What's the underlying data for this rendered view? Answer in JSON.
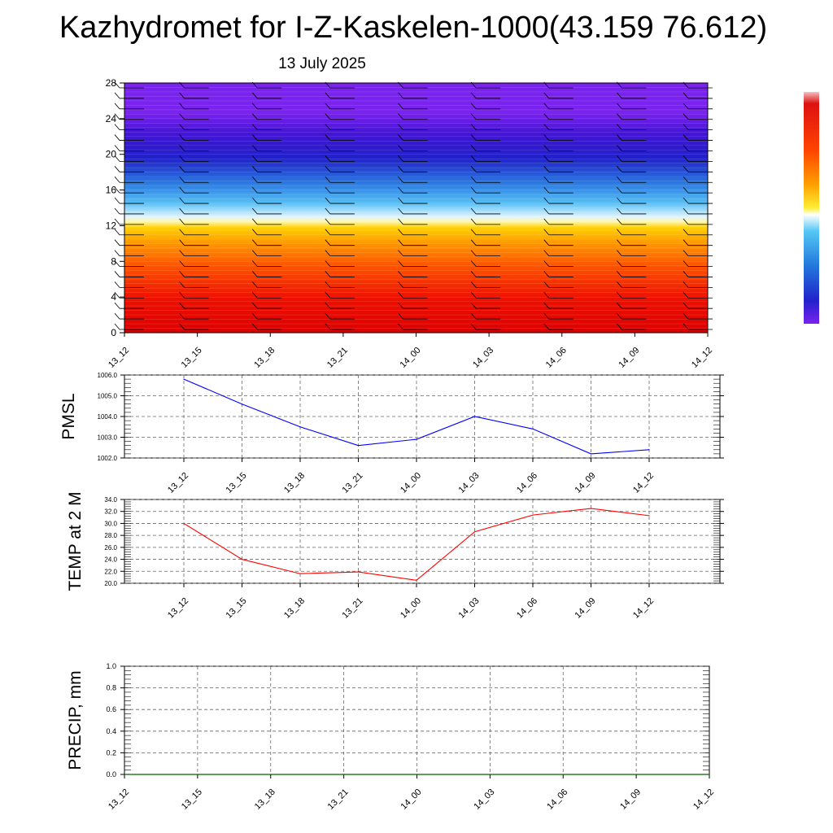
{
  "header": {
    "title": "Kazhydromet for I-Z-Kaskelen-1000(43.159 76.612)",
    "date": "13 July 2025"
  },
  "colors": {
    "pmsl_line": "#0000ff",
    "temp_line": "#ff0000",
    "precip_line": "#006400",
    "contour_palette": [
      "#dd0000",
      "#ee2200",
      "#ff5500",
      "#ff8800",
      "#ffaa00",
      "#ffd000",
      "#fff6a0",
      "#9fdcff",
      "#33a8f0",
      "#2266dd",
      "#2222cc",
      "#5511dd",
      "#7722ee"
    ]
  },
  "chart_data": [
    {
      "name": "wind-profile",
      "type": "heatmap",
      "x_ticks": [
        "13_12",
        "13_15",
        "13_18",
        "13_21",
        "14_00",
        "14_03",
        "14_06",
        "14_09",
        "14_12"
      ],
      "ylim": [
        0,
        28
      ],
      "y_ticks": [
        "0",
        "4",
        "8",
        "12",
        "16",
        "20",
        "24",
        "28"
      ],
      "colorbar": "red-to-violet vertical scale, top-right"
    },
    {
      "name": "pmsl",
      "type": "line",
      "ylabel": "PMSL",
      "x": [
        "13_12",
        "13_15",
        "13_18",
        "13_21",
        "14_00",
        "14_03",
        "14_06",
        "14_09",
        "14_12"
      ],
      "values": [
        1005.8,
        1004.6,
        1003.5,
        1002.6,
        1002.9,
        1004.0,
        1003.4,
        1002.2,
        1002.4
      ],
      "ylim": [
        1002.0,
        1006.0
      ],
      "y_ticks": [
        "1002.0",
        "1003.0",
        "1004.0",
        "1005.0",
        "1006.0"
      ],
      "grid": true
    },
    {
      "name": "temp",
      "type": "line",
      "ylabel": "TEMP at 2 M",
      "x": [
        "13_12",
        "13_15",
        "13_18",
        "13_21",
        "14_00",
        "14_03",
        "14_06",
        "14_09",
        "14_12"
      ],
      "values": [
        30.0,
        24.0,
        21.6,
        21.9,
        20.5,
        28.6,
        31.4,
        32.5,
        31.3
      ],
      "ylim": [
        20.0,
        34.0
      ],
      "y_ticks": [
        "20.0",
        "22.0",
        "24.0",
        "26.0",
        "28.0",
        "30.0",
        "32.0",
        "34.0"
      ],
      "grid": true
    },
    {
      "name": "precip",
      "type": "line",
      "ylabel": "PRECIP, mm",
      "x": [
        "13_12",
        "13_15",
        "13_18",
        "13_21",
        "14_00",
        "14_03",
        "14_06",
        "14_09",
        "14_12"
      ],
      "values": [
        0,
        0,
        0,
        0,
        0,
        0,
        0,
        0,
        0
      ],
      "ylim": [
        0.0,
        1.0
      ],
      "y_ticks": [
        "0.0",
        "0.2",
        "0.4",
        "0.6",
        "0.8",
        "1.0"
      ],
      "grid": true
    }
  ]
}
